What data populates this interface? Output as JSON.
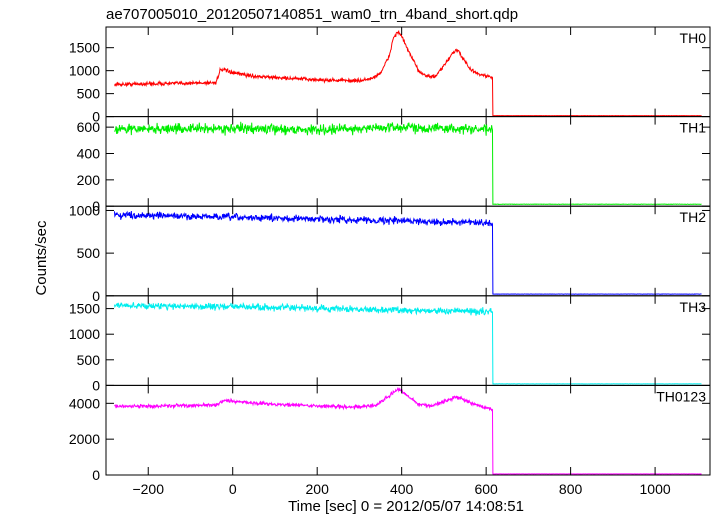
{
  "chart_data": {
    "type": "line",
    "title": "ae707005010_20120507140851_wam0_trn_4band_short.qdp",
    "xlabel": "Time [sec] 0 = 2012/05/07 14:08:51",
    "ylabel": "Counts/sec",
    "xlim": [
      -300,
      1130
    ],
    "x_ticks": [
      -200,
      0,
      200,
      400,
      600,
      800,
      1000
    ],
    "x_tick_labels": [
      "−200",
      "0",
      "200",
      "400",
      "600",
      "800",
      "1000"
    ],
    "grid": false,
    "legend": "none",
    "panels": [
      {
        "label": "TH0",
        "color": "#ff0000",
        "ylim": [
          0,
          1950
        ],
        "y_ticks": [
          0,
          500,
          1000,
          1500
        ],
        "noise": 28,
        "x": [
          -280,
          -40,
          -30,
          -20,
          0,
          50,
          100,
          200,
          300,
          330,
          350,
          370,
          380,
          390,
          400,
          420,
          440,
          460,
          480,
          500,
          520,
          530,
          540,
          560,
          580,
          610,
          615,
          616,
          1110
        ],
        "values": [
          700,
          740,
          1000,
          1020,
          950,
          880,
          850,
          800,
          780,
          830,
          950,
          1300,
          1700,
          1850,
          1750,
          1350,
          1000,
          880,
          870,
          1100,
          1380,
          1450,
          1350,
          1050,
          930,
          860,
          850,
          20,
          20
        ]
      },
      {
        "label": "TH1",
        "color": "#00ee00",
        "ylim": [
          0,
          680
        ],
        "y_ticks": [
          0,
          200,
          400,
          600
        ],
        "noise": 26,
        "x": [
          -280,
          0,
          200,
          400,
          610,
          615,
          616,
          1110
        ],
        "values": [
          585,
          590,
          580,
          600,
          580,
          580,
          15,
          15
        ]
      },
      {
        "label": "TH2",
        "color": "#0000ff",
        "ylim": [
          0,
          1050
        ],
        "y_ticks": [
          0,
          500,
          1000
        ],
        "noise": 28,
        "x": [
          -280,
          0,
          200,
          400,
          610,
          615,
          616,
          1110
        ],
        "values": [
          950,
          920,
          900,
          880,
          850,
          840,
          20,
          20
        ]
      },
      {
        "label": "TH3",
        "color": "#00eeee",
        "ylim": [
          0,
          1750
        ],
        "y_ticks": [
          0,
          500,
          1000,
          1500
        ],
        "noise": 45,
        "x": [
          -280,
          0,
          200,
          400,
          610,
          615,
          616,
          1110
        ],
        "values": [
          1560,
          1540,
          1500,
          1470,
          1440,
          1430,
          30,
          30
        ]
      },
      {
        "label": "TH0123",
        "color": "#ff00ff",
        "ylim": [
          0,
          5000
        ],
        "y_ticks": [
          0,
          2000,
          4000
        ],
        "noise": 70,
        "x": [
          -280,
          -40,
          -20,
          0,
          100,
          200,
          300,
          340,
          370,
          390,
          410,
          440,
          470,
          500,
          530,
          545,
          570,
          600,
          610,
          615,
          616,
          1110
        ],
        "values": [
          3820,
          3900,
          4150,
          4100,
          3950,
          3850,
          3800,
          3900,
          4400,
          4800,
          4500,
          3950,
          3850,
          4100,
          4350,
          4250,
          3950,
          3750,
          3700,
          3650,
          60,
          60
        ]
      }
    ]
  }
}
